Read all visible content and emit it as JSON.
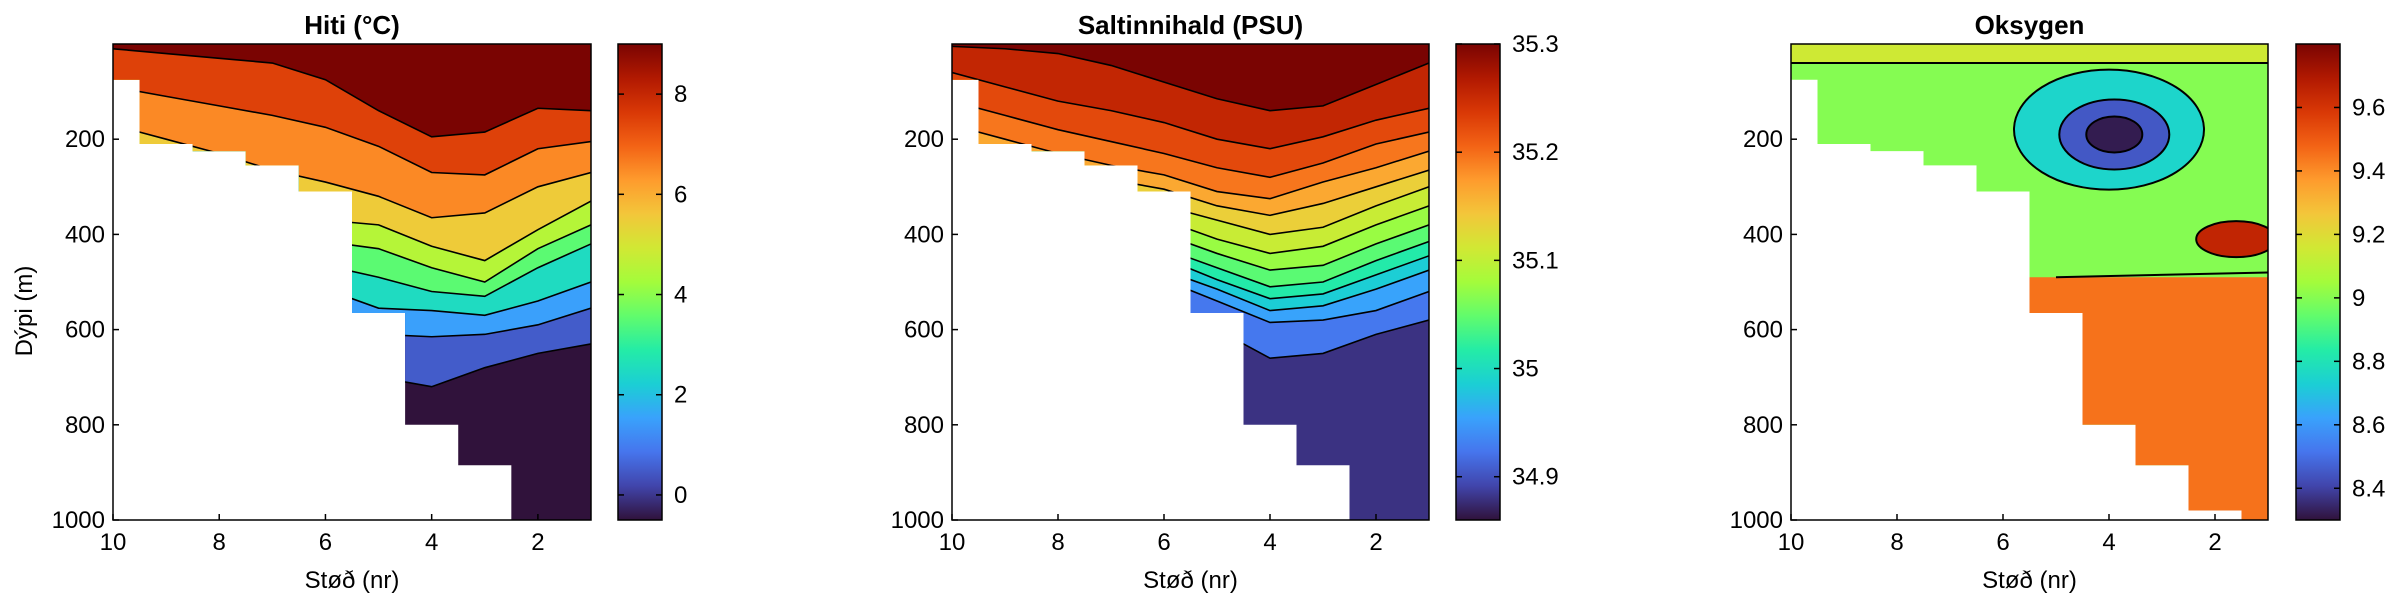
{
  "figure": {
    "ylabel": "Dýpi (m)",
    "colormap": [
      "#30123b",
      "#4145ab",
      "#4675ed",
      "#39a2fc",
      "#1bcfd4",
      "#24eca6",
      "#61fc6c",
      "#a4fc3b",
      "#d1e834",
      "#f3c63a",
      "#fe9b2d",
      "#f36315",
      "#d93806",
      "#b11901",
      "#7a0402"
    ]
  },
  "chart_data": [
    {
      "type": "heatmap",
      "title": "Hiti (°C)",
      "xlabel": "Støð (nr)",
      "ylabel": "Dýpi (m)",
      "x_ticks": [
        10,
        8,
        6,
        4,
        2
      ],
      "y_ticks": [
        200,
        400,
        600,
        800,
        1000
      ],
      "xlim": [
        10,
        1
      ],
      "ylim": [
        0,
        1000
      ],
      "colorbar": {
        "ticks": [
          "0",
          "2",
          "4",
          "6",
          "8"
        ],
        "tick_values": [
          0,
          2,
          4,
          6,
          8
        ],
        "range": [
          -0.5,
          9
        ]
      },
      "stations": [
        {
          "station": 10,
          "max_depth": 75
        },
        {
          "station": 9,
          "max_depth": 210
        },
        {
          "station": 8,
          "max_depth": 225
        },
        {
          "station": 7,
          "max_depth": 255
        },
        {
          "station": 6,
          "max_depth": 310
        },
        {
          "station": 5,
          "max_depth": 565
        },
        {
          "station": 4,
          "max_depth": 800
        },
        {
          "station": 3,
          "max_depth": 885
        },
        {
          "station": 2,
          "max_depth": 1000
        },
        {
          "station": 1,
          "max_depth": 1000
        }
      ],
      "contour_depths": [
        {
          "value": 8,
          "depths": [
            10,
            20,
            30,
            40,
            75,
            140,
            195,
            185,
            135,
            140
          ]
        },
        {
          "value": 7,
          "depths": [
            90,
            110,
            130,
            150,
            175,
            215,
            270,
            275,
            220,
            205
          ]
        },
        {
          "value": 6,
          "depths": [
            170,
            200,
            230,
            265,
            290,
            320,
            365,
            355,
            300,
            270
          ]
        },
        {
          "value": 5,
          "depths": [
            260,
            290,
            320,
            350,
            370,
            380,
            425,
            455,
            390,
            330
          ]
        },
        {
          "value": 4,
          "depths": [
            300,
            330,
            360,
            390,
            415,
            430,
            470,
            500,
            430,
            380
          ]
        },
        {
          "value": 3,
          "depths": [
            340,
            370,
            400,
            430,
            465,
            490,
            520,
            530,
            470,
            420
          ]
        },
        {
          "value": 2,
          "depths": [
            390,
            420,
            450,
            480,
            515,
            555,
            560,
            570,
            540,
            500
          ]
        },
        {
          "value": 1,
          "depths": [
            460,
            490,
            520,
            550,
            570,
            610,
            615,
            610,
            590,
            555
          ]
        },
        {
          "value": 0,
          "depths": [
            560,
            590,
            620,
            650,
            670,
            700,
            720,
            680,
            650,
            630
          ]
        }
      ]
    },
    {
      "type": "heatmap",
      "title": "Saltinnihald (PSU)",
      "xlabel": "Støð (nr)",
      "x_ticks": [
        10,
        8,
        6,
        4,
        2
      ],
      "y_ticks": [
        200,
        400,
        600,
        800,
        1000
      ],
      "xlim": [
        10,
        1
      ],
      "ylim": [
        0,
        1000
      ],
      "colorbar": {
        "ticks": [
          "34.9",
          "35",
          "35.1",
          "35.2",
          "35.3"
        ],
        "tick_values": [
          34.9,
          35.0,
          35.1,
          35.2,
          35.3
        ],
        "range": [
          34.86,
          35.3
        ]
      },
      "stations": [
        {
          "station": 10,
          "max_depth": 75
        },
        {
          "station": 9,
          "max_depth": 210
        },
        {
          "station": 8,
          "max_depth": 225
        },
        {
          "station": 7,
          "max_depth": 255
        },
        {
          "station": 6,
          "max_depth": 310
        },
        {
          "station": 5,
          "max_depth": 565
        },
        {
          "station": 4,
          "max_depth": 800
        },
        {
          "station": 3,
          "max_depth": 885
        },
        {
          "station": 2,
          "max_depth": 1000
        },
        {
          "station": 1,
          "max_depth": 1000
        }
      ],
      "contour_depths": [
        {
          "value": 35.27,
          "depths": [
            5,
            10,
            20,
            45,
            80,
            115,
            140,
            130,
            85,
            40
          ]
        },
        {
          "value": 35.24,
          "depths": [
            60,
            90,
            120,
            140,
            165,
            200,
            220,
            195,
            160,
            135
          ]
        },
        {
          "value": 35.21,
          "depths": [
            120,
            150,
            180,
            205,
            230,
            260,
            280,
            250,
            210,
            185
          ]
        },
        {
          "value": 35.18,
          "depths": [
            170,
            200,
            230,
            255,
            275,
            310,
            325,
            290,
            260,
            225
          ]
        },
        {
          "value": 35.15,
          "depths": [
            200,
            230,
            260,
            285,
            305,
            340,
            360,
            335,
            300,
            265
          ]
        },
        {
          "value": 35.12,
          "depths": [
            230,
            260,
            290,
            315,
            340,
            370,
            400,
            385,
            340,
            300
          ]
        },
        {
          "value": 35.09,
          "depths": [
            260,
            290,
            320,
            345,
            370,
            410,
            440,
            425,
            380,
            340
          ]
        },
        {
          "value": 35.06,
          "depths": [
            285,
            315,
            345,
            375,
            400,
            440,
            475,
            465,
            420,
            380
          ]
        },
        {
          "value": 35.03,
          "depths": [
            310,
            340,
            370,
            400,
            430,
            470,
            510,
            500,
            455,
            415
          ]
        },
        {
          "value": 35.0,
          "depths": [
            330,
            360,
            390,
            420,
            450,
            495,
            535,
            525,
            485,
            445
          ]
        },
        {
          "value": 34.97,
          "depths": [
            350,
            380,
            410,
            440,
            475,
            515,
            560,
            550,
            515,
            475
          ]
        },
        {
          "value": 34.94,
          "depths": [
            370,
            400,
            430,
            460,
            495,
            540,
            585,
            580,
            560,
            520
          ]
        },
        {
          "value": 34.91,
          "depths": [
            420,
            450,
            480,
            510,
            545,
            600,
            660,
            650,
            610,
            580
          ]
        }
      ]
    },
    {
      "type": "heatmap",
      "title": "Oksygen",
      "xlabel": "Støð (nr)",
      "x_ticks": [
        10,
        8,
        6,
        4,
        2
      ],
      "y_ticks": [
        200,
        400,
        600,
        800,
        1000
      ],
      "xlim": [
        10,
        1
      ],
      "ylim": [
        0,
        1000
      ],
      "colorbar": {
        "ticks": [
          "8.4",
          "8.6",
          "8.8",
          "9",
          "9.2",
          "9.4",
          "9.6"
        ],
        "tick_values": [
          8.4,
          8.6,
          8.8,
          9.0,
          9.2,
          9.4,
          9.6
        ],
        "range": [
          8.3,
          9.8
        ]
      },
      "stations": [
        {
          "station": 10,
          "max_depth": 75
        },
        {
          "station": 9,
          "max_depth": 210
        },
        {
          "station": 8,
          "max_depth": 225
        },
        {
          "station": 7,
          "max_depth": 255
        },
        {
          "station": 6,
          "max_depth": 310
        },
        {
          "station": 5,
          "max_depth": 565
        },
        {
          "station": 4,
          "max_depth": 800
        },
        {
          "station": 3,
          "max_depth": 885
        },
        {
          "station": 2,
          "max_depth": 980
        },
        {
          "station": 1,
          "max_depth": 1000
        }
      ],
      "regions": [
        {
          "value": 9.0,
          "depth_from": 0,
          "depth_to": 1000
        },
        {
          "value": 9.45,
          "depth_from": 490,
          "depth_to": 1000
        },
        {
          "value": 9.15,
          "depth_from": 0,
          "depth_to": 40
        }
      ]
    }
  ]
}
